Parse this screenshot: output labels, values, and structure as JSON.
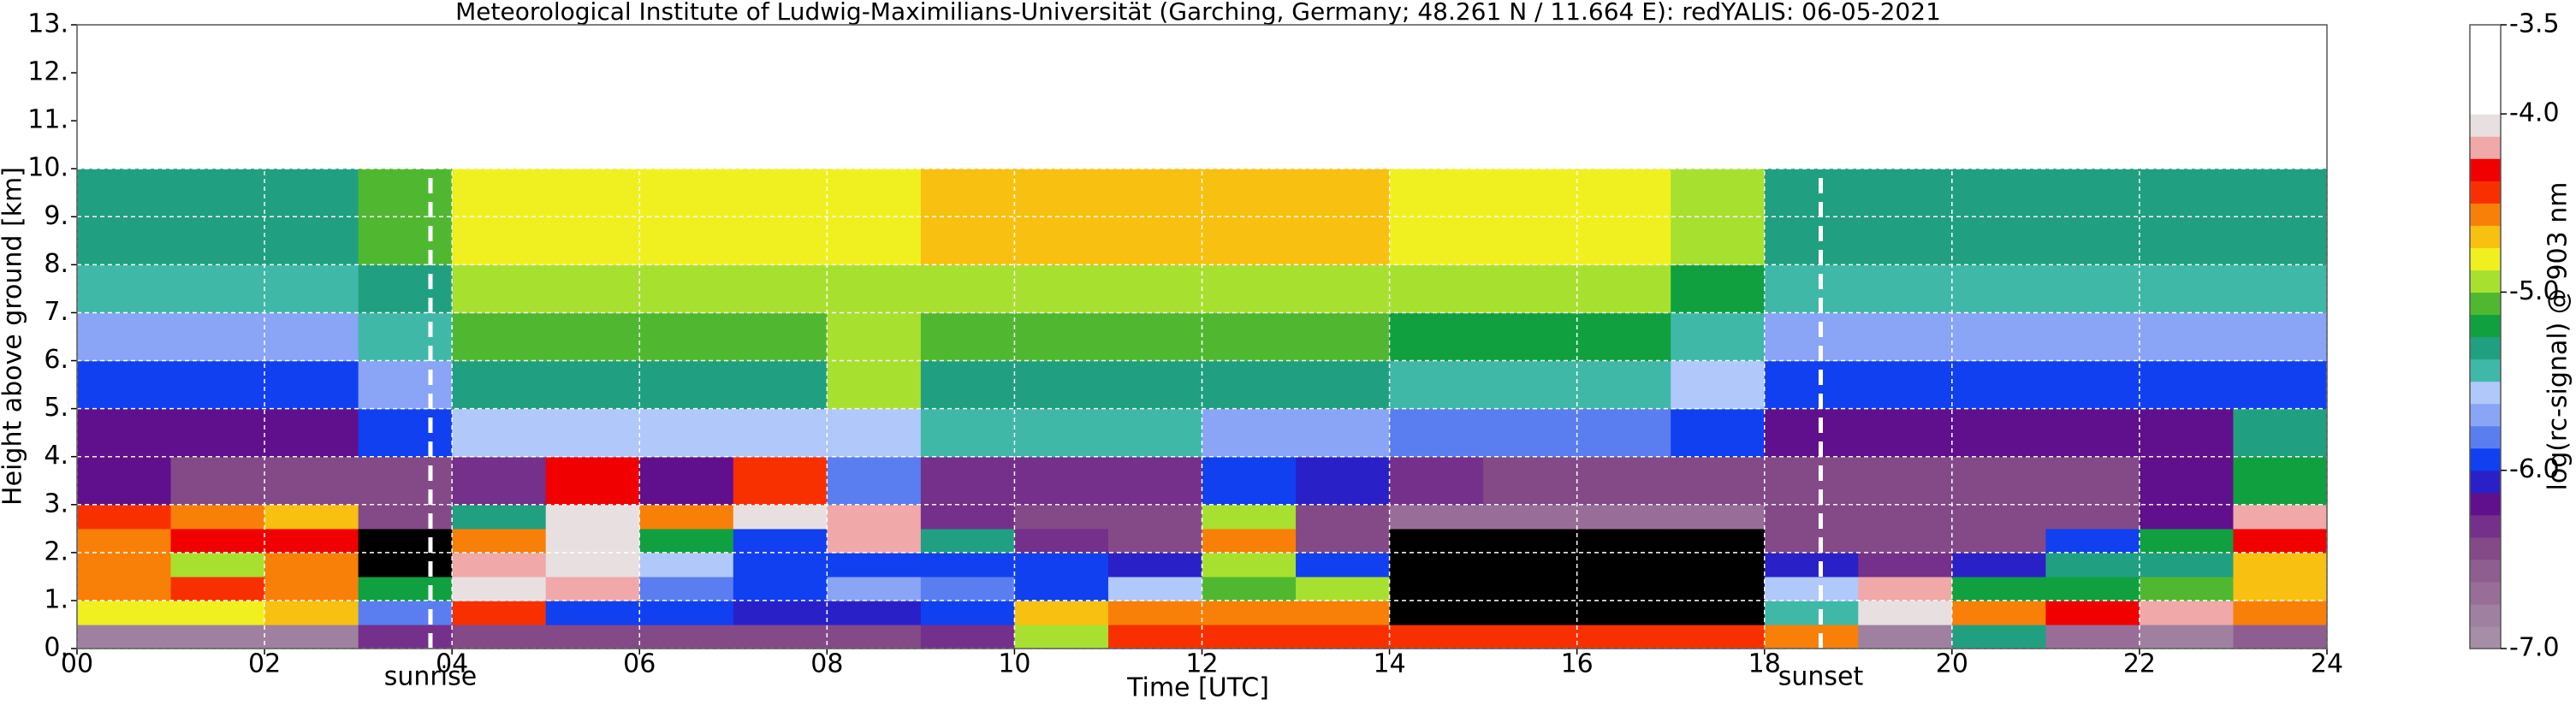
{
  "chart_data": {
    "type": "heatmap",
    "title": "Meteorological Institute of Ludwig-Maximilians-Universität (Garching, Germany; 48.261 N / 11.664 E):    redYALIS: 06-05-2021",
    "x_label": "Time [UTC]",
    "y_label": "Height above ground [km]",
    "colorbar_label": "log(rc-signal) @ 903 nm",
    "xlim": [
      0,
      24
    ],
    "xticks": [
      {
        "value": 0,
        "label": "00"
      },
      {
        "value": 2,
        "label": "02"
      },
      {
        "value": 4,
        "label": "04"
      },
      {
        "value": 6,
        "label": "06"
      },
      {
        "value": 8,
        "label": "08"
      },
      10,
      12,
      14,
      16,
      18,
      20,
      22,
      24
    ],
    "ylim": [
      0,
      13
    ],
    "yticks": [
      {
        "value": 0,
        "label": "0."
      },
      {
        "value": 1,
        "label": "1."
      },
      {
        "value": 2,
        "label": "2."
      },
      {
        "value": 3,
        "label": "3."
      },
      {
        "value": 4,
        "label": "4."
      },
      {
        "value": 5,
        "label": "5."
      },
      {
        "value": 6,
        "label": "6."
      },
      {
        "value": 7,
        "label": "7."
      },
      {
        "value": 8,
        "label": "8."
      },
      {
        "value": 9,
        "label": "9."
      },
      {
        "value": 10,
        "label": "10."
      },
      {
        "value": 11,
        "label": "11."
      },
      {
        "value": 12,
        "label": "12."
      },
      {
        "value": 13,
        "label": "13."
      }
    ],
    "grid": true,
    "x_edges": [
      0,
      1,
      2,
      3,
      4,
      5,
      6,
      7,
      8,
      9,
      10,
      11,
      12,
      13,
      14,
      15,
      16,
      17,
      18,
      19,
      20,
      21,
      22,
      23,
      24
    ],
    "y_edges": [
      0,
      0.5,
      1,
      1.5,
      2,
      2.5,
      3,
      4,
      5,
      6,
      7,
      8,
      10
    ],
    "values": [
      [
        -6.8,
        -6.8,
        -6.8,
        -6.3,
        -6.4,
        -6.5,
        -6.5,
        -6.5,
        -6.5,
        -6.3,
        -5.0,
        -4.4,
        -4.5,
        -4.5,
        -4.4,
        -4.4,
        -4.4,
        -4.4,
        -4.6,
        -6.8,
        -5.3,
        -6.7,
        -6.8,
        -6.6
      ],
      [
        -4.8,
        -4.8,
        -4.7,
        -5.8,
        -4.4,
        -6.0,
        -6.0,
        -6.1,
        -6.1,
        -6.0,
        -4.7,
        -4.6,
        -4.6,
        -4.6,
        -7.3,
        -7.3,
        -7.3,
        -7.3,
        -5.5,
        -4.1,
        -4.6,
        -4.3,
        -4.2,
        -4.6
      ],
      [
        -4.6,
        -4.5,
        -4.6,
        -5.2,
        -4.1,
        -4.2,
        -5.8,
        -5.9,
        -5.7,
        -5.8,
        -5.9,
        -5.6,
        -5.1,
        -4.9,
        -7.2,
        -7.2,
        -7.2,
        -7.2,
        -5.6,
        -4.2,
        -5.2,
        -5.2,
        -5.1,
        -4.7
      ],
      [
        -4.6,
        -4.9,
        -4.6,
        -7.2,
        -4.2,
        -4.1,
        -5.6,
        -5.9,
        -6.0,
        -6.0,
        -6.0,
        -6.1,
        -4.9,
        -5.9,
        -7.2,
        -7.2,
        -7.2,
        -7.2,
        -6.1,
        -6.3,
        -6.1,
        -5.3,
        -5.3,
        -4.7
      ],
      [
        -4.6,
        -4.3,
        -4.3,
        -7.2,
        -4.6,
        -4.1,
        -5.2,
        -5.9,
        -4.2,
        -5.3,
        -6.3,
        -6.4,
        -4.6,
        -6.4,
        -7.3,
        -7.3,
        -7.3,
        -7.3,
        -6.4,
        -6.4,
        -6.4,
        -6.0,
        -5.2,
        -4.3
      ],
      [
        -4.4,
        -4.6,
        -4.7,
        -6.4,
        -5.3,
        -4.1,
        -4.6,
        -4.1,
        -4.2,
        -6.3,
        -6.5,
        -6.5,
        -4.9,
        -6.5,
        -6.7,
        -6.7,
        -6.7,
        -6.7,
        -6.5,
        -6.5,
        -6.5,
        -6.5,
        -6.2,
        -4.2
      ],
      [
        -6.2,
        -6.4,
        -6.4,
        -6.4,
        -6.3,
        -4.3,
        -6.2,
        -4.4,
        -5.8,
        -6.3,
        -6.3,
        -6.3,
        -6.0,
        -6.1,
        -6.3,
        -6.4,
        -6.4,
        -6.4,
        -6.4,
        -6.4,
        -6.4,
        -6.4,
        -6.2,
        -5.2
      ],
      [
        -6.2,
        -6.2,
        -6.2,
        -6.0,
        -5.6,
        -5.6,
        -5.6,
        -5.6,
        -5.6,
        -5.5,
        -5.5,
        -5.5,
        -5.7,
        -5.7,
        -5.8,
        -5.8,
        -5.8,
        -5.9,
        -6.2,
        -6.2,
        -6.2,
        -6.2,
        -6.2,
        -5.3
      ],
      [
        -5.9,
        -5.9,
        -5.9,
        -5.7,
        -5.3,
        -5.3,
        -5.3,
        -5.3,
        -5.0,
        -5.3,
        -5.3,
        -5.3,
        -5.3,
        -5.3,
        -5.4,
        -5.4,
        -5.4,
        -5.6,
        -5.9,
        -5.9,
        -5.9,
        -5.9,
        -5.9,
        -5.9
      ],
      [
        -5.7,
        -5.7,
        -5.7,
        -5.5,
        -5.1,
        -5.1,
        -5.1,
        -5.1,
        -4.9,
        -5.1,
        -5.1,
        -5.1,
        -5.1,
        -5.1,
        -5.2,
        -5.2,
        -5.2,
        -5.4,
        -5.7,
        -5.7,
        -5.7,
        -5.7,
        -5.7,
        -5.7
      ],
      [
        -5.5,
        -5.5,
        -5.5,
        -5.3,
        -5.0,
        -5.0,
        -5.0,
        -5.0,
        -5.0,
        -4.9,
        -4.9,
        -4.9,
        -4.9,
        -4.9,
        -5.0,
        -5.0,
        -5.0,
        -5.2,
        -5.5,
        -5.5,
        -5.5,
        -5.5,
        -5.5,
        -5.5
      ],
      [
        -5.3,
        -5.3,
        -5.3,
        -5.1,
        -4.8,
        -4.8,
        -4.8,
        -4.8,
        -4.8,
        -4.7,
        -4.7,
        -4.7,
        -4.7,
        -4.7,
        -4.8,
        -4.8,
        -4.8,
        -5.0,
        -5.3,
        -5.3,
        -5.3,
        -5.3,
        -5.3,
        -5.3
      ]
    ],
    "clim": [
      -7,
      -3.5
    ],
    "cticks": [
      {
        "value": -7,
        "label": "-7.0"
      },
      {
        "value": -6,
        "label": "-6.0"
      },
      {
        "value": -5,
        "label": "-5.0"
      },
      {
        "value": -4,
        "label": "-4.0"
      },
      -3.5
    ],
    "colors": [
      "#a68ea6",
      "#a080a0",
      "#986e98",
      "#8e5e90",
      "#844a88",
      "#74308a",
      "#60108c",
      "#2a20c8",
      "#1040f0",
      "#5a7ef0",
      "#8aa4f6",
      "#b0c8fa",
      "#40b8a8",
      "#20a080",
      "#10a040",
      "#50b830",
      "#a8e030",
      "#f0f020",
      "#f8c010",
      "#f88008",
      "#f83000",
      "#f00000",
      "#f0a8a8",
      "#e8e0e0",
      "#ffffff",
      "#ffffff",
      "#ffffff",
      "#ffffff"
    ],
    "under_color": "#000000",
    "annotations": [
      {
        "text": "sunrise",
        "x": 3.77
      },
      {
        "text": "sunset",
        "x": 18.6
      }
    ]
  }
}
